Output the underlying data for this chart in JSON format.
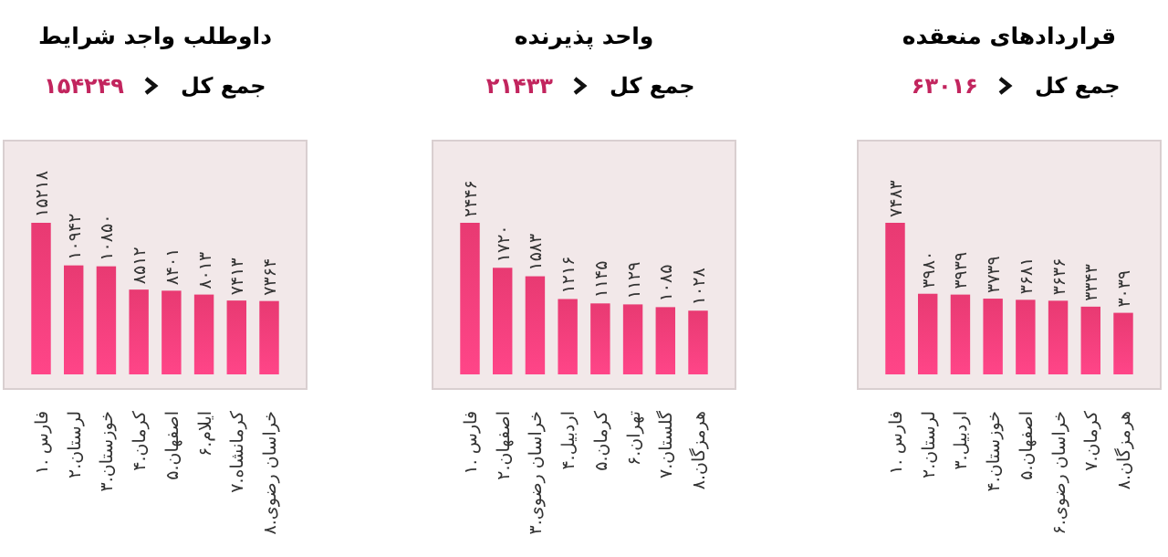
{
  "chart_data": [
    {
      "type": "bar",
      "title": "داوطلب واجد شرایط",
      "subtitle": "جمع کل",
      "annotations": [
        "۱۵۴۲۴۹"
      ],
      "categories": [
        "۱. فارس",
        "۲.لرستان",
        "۳.خوزستان",
        "۴.کرمان",
        "۵.اصفهان",
        "۶.ایلام",
        "۷.کرمانشاه",
        "۸.خراسان رضوی"
      ],
      "values": [
        15218,
        10942,
        10850,
        8512,
        8401,
        8013,
        7413,
        7364
      ],
      "value_labels": [
        "۱۵۲۱۸",
        "۱۰۹۴۲",
        "۱۰۸۵۰",
        "۸۵۱۲",
        "۸۴۰۱",
        "۸۰۱۳",
        "۷۴۱۳",
        "۷۳۶۴"
      ],
      "color": "#e83a72"
    },
    {
      "type": "bar",
      "title": "واحد پذیرنده",
      "subtitle": "جمع کل",
      "annotations": [
        "۲۱۴۳۳"
      ],
      "categories": [
        "۱. فارس",
        "۲.اصفهان",
        "۳.خراسان رضوی",
        "۴.اردبیل",
        "۵.کرمان",
        "۶.تهران",
        "۷.گلستان",
        "۸.هرمزگان"
      ],
      "values": [
        2446,
        1720,
        1583,
        1216,
        1145,
        1129,
        1085,
        1028
      ],
      "value_labels": [
        "۲۴۴۶",
        "۱۷۲۰",
        "۱۵۸۳",
        "۱۲۱۶",
        "۱۱۴۵",
        "۱۱۲۹",
        "۱۰۸۵",
        "۱۰۲۸"
      ],
      "color": "#e83a72"
    },
    {
      "type": "bar",
      "title": "قراردادهای منعقده",
      "subtitle": "جمع کل",
      "annotations": [
        "۶۳۰۱۶"
      ],
      "categories": [
        "۱. فارس",
        "۲.لرستان",
        "۳.اردبیل",
        "۴.خوزستان",
        "۵.اصفهان",
        "۶.خراسان رضوی",
        "۷.کرمان",
        "۸.هرمزگان"
      ],
      "values": [
        7483,
        3980,
        3939,
        3739,
        3681,
        3636,
        3343,
        3039
      ],
      "value_labels": [
        "۷۴۸۳",
        "۳۹۸۰",
        "۳۹۳۹",
        "۳۷۳۹",
        "۳۶۸۱",
        "۳۶۳۶",
        "۳۳۴۳",
        "۳۰۳۹"
      ],
      "color": "#e83a72"
    }
  ]
}
